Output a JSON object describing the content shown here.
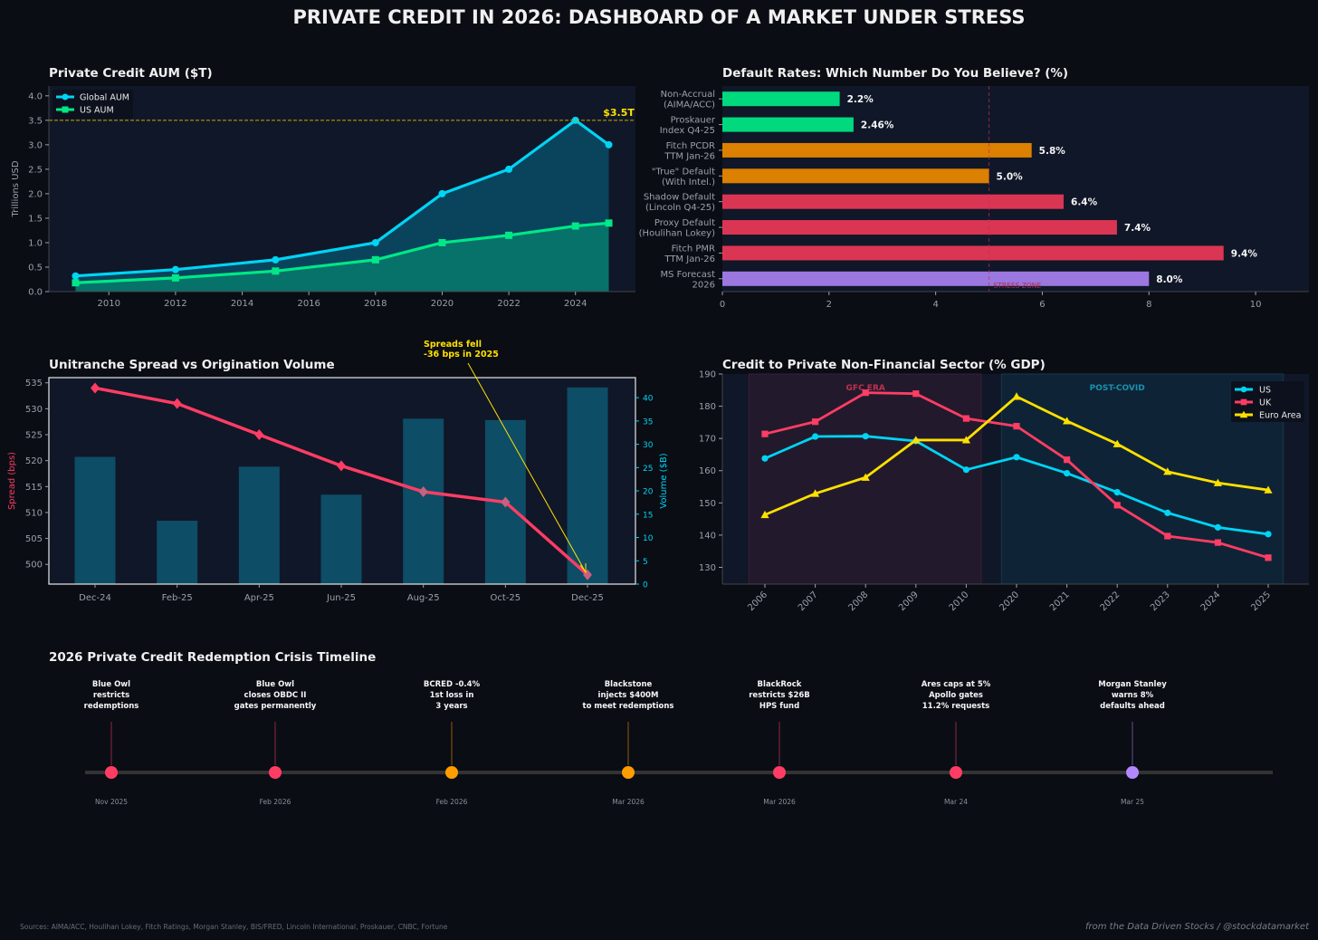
{
  "title": "PRIVATE CREDIT IN 2026: DASHBOARD OF A MARKET UNDER STRESS",
  "colors": {
    "bg": "#0a0d14",
    "panel": "#101728",
    "cyan": "#00d4f5",
    "green": "#00e887",
    "orange": "#e08a00",
    "red": "#e03556",
    "purple": "#9b77e0",
    "yellow": "#ffe000",
    "pink": "#ff3d64"
  },
  "chart_data": [
    {
      "type": "line",
      "title": "Private Credit AUM ($T)",
      "ylabel": "Trillions USD",
      "xlabel": "",
      "xlim": [
        2008.2,
        2025.8
      ],
      "ylim": [
        0,
        4.2
      ],
      "xticks": [
        2010,
        2012,
        2014,
        2016,
        2018,
        2020,
        2022,
        2024
      ],
      "yticks": [
        "0.0",
        "0.5",
        "1.0",
        "1.5",
        "2.0",
        "2.5",
        "3.0",
        "3.5",
        "4.0"
      ],
      "x": [
        2009,
        2012,
        2015,
        2018,
        2020,
        2022,
        2024,
        2025
      ],
      "series": [
        {
          "name": "Global AUM",
          "values": [
            0.32,
            0.45,
            0.65,
            1.0,
            2.0,
            2.5,
            3.5,
            3.0
          ]
        },
        {
          "name": "US AUM",
          "values": [
            0.18,
            0.28,
            0.42,
            0.65,
            1.0,
            1.15,
            1.34,
            1.4
          ]
        }
      ],
      "reference_line": {
        "value": 3.5,
        "label": "$3.5T"
      },
      "legend": "top-left"
    },
    {
      "type": "bar",
      "orientation": "horizontal",
      "title": "Default Rates: Which Number Do You Believe? (%)",
      "categories": [
        "Non-Accrual\n(AIMA/ACC)",
        "Proskauer\nIndex Q4-25",
        "Fitch PCDR\nTTM Jan-26",
        "\"True\" Default\n(With Intel.)",
        "Shadow Default\n(Lincoln Q4-25)",
        "Proxy Default\n(Houlihan Lokey)",
        "Fitch PMR\nTTM Jan-26",
        "MS Forecast\n2026"
      ],
      "values": [
        2.2,
        2.46,
        5.8,
        5.0,
        6.4,
        7.4,
        9.4,
        8.0
      ],
      "labels": [
        "2.2%",
        "2.46%",
        "5.8%",
        "5.0%",
        "6.4%",
        "7.4%",
        "9.4%",
        "8.0%"
      ],
      "bar_colors": [
        "#00d97e",
        "#00d97e",
        "#db8000",
        "#db8000",
        "#db3554",
        "#db3554",
        "#db3554",
        "#9b77e0"
      ],
      "xlim": [
        0,
        11
      ],
      "xticks": [
        "0",
        "2",
        "4",
        "6",
        "8",
        "10"
      ],
      "reference_line": {
        "value": 5,
        "label": "STRESS ZONE"
      }
    },
    {
      "type": "bar+line",
      "title": "Unitranche Spread vs Origination Volume",
      "categories": [
        "Dec-24",
        "Feb-25",
        "Apr-25",
        "Jun-25",
        "Aug-25",
        "Oct-25",
        "Dec-25"
      ],
      "series": [
        {
          "name": "Spread (bps)",
          "axis": "left",
          "type": "line",
          "values": [
            534,
            531,
            525,
            519,
            514,
            512,
            498
          ]
        },
        {
          "name": "Volume ($B)",
          "axis": "right",
          "type": "bar",
          "values": [
            27.3,
            13.6,
            25.2,
            19.2,
            35.5,
            35.2,
            42.2
          ]
        }
      ],
      "ylabel": "Spread (bps)",
      "y2label": "Volume ($B)",
      "ylim": [
        496.2,
        536
      ],
      "y2lim": [
        0,
        44.3
      ],
      "yticks": [
        "500",
        "505",
        "510",
        "515",
        "520",
        "525",
        "530",
        "535"
      ],
      "y2ticks": [
        "0",
        "5",
        "10",
        "15",
        "20",
        "25",
        "30",
        "35",
        "40"
      ],
      "annotation": {
        "line1": "Spreads fell",
        "line2": "-36 bps in 2025",
        "target": "Dec-25"
      }
    },
    {
      "type": "line",
      "title": "Credit to Private Non-Financial Sector (% GDP)",
      "categories": [
        "2006",
        "2007",
        "2008",
        "2009",
        "2010",
        "2020",
        "2021",
        "2022",
        "2023",
        "2024",
        "2025"
      ],
      "series": [
        {
          "name": "US",
          "values": [
            163.8,
            170.6,
            170.7,
            169.2,
            160.3,
            164.2,
            159.2,
            153.3,
            146.9,
            142.4,
            140.3
          ]
        },
        {
          "name": "UK",
          "values": [
            171.4,
            175.2,
            184.2,
            183.9,
            176.2,
            173.8,
            163.4,
            149.3,
            139.7,
            137.7,
            133.0
          ]
        },
        {
          "name": "Euro Area",
          "values": [
            146.3,
            152.9,
            157.9,
            169.5,
            169.5,
            183.0,
            175.4,
            168.3,
            159.7,
            156.2,
            154.0
          ]
        }
      ],
      "ylim": [
        124.8,
        190
      ],
      "yticks": [
        "130",
        "140",
        "150",
        "160",
        "170",
        "180",
        "190"
      ],
      "shaded_regions": [
        {
          "label": "GFC ERA",
          "from": "2006",
          "to": "2010"
        },
        {
          "label": "POST-COVID",
          "from": "2020",
          "to": "2025"
        }
      ],
      "legend": "top-right"
    }
  ],
  "timeline": {
    "title": "2026 Private Credit Redemption Crisis Timeline",
    "events": [
      {
        "lines": [
          "Blue Owl",
          "restricts",
          "redemptions"
        ],
        "date": "Nov 2025",
        "color": "#ff3d64"
      },
      {
        "lines": [
          "Blue Owl",
          "closes OBDC II",
          "gates permanently"
        ],
        "date": "Feb 2026",
        "color": "#ff3d64"
      },
      {
        "lines": [
          "BCRED -0.4%",
          "1st loss in",
          "3 years"
        ],
        "date": "Feb 2026",
        "color": "#ff9d00"
      },
      {
        "lines": [
          "Blackstone",
          "injects $400M",
          "to meet redemptions"
        ],
        "date": "Mar 2026",
        "color": "#ff9d00"
      },
      {
        "lines": [
          "BlackRock",
          "restricts $26B",
          "HPS fund"
        ],
        "date": "Mar 2026",
        "color": "#ff3d64"
      },
      {
        "lines": [
          "Ares caps at 5%",
          "Apollo gates",
          "11.2% requests"
        ],
        "date": "Mar 24",
        "color": "#ff3d64"
      },
      {
        "lines": [
          "Morgan Stanley",
          "warns 8%",
          "defaults ahead"
        ],
        "date": "Mar 25",
        "color": "#b388ff"
      }
    ]
  },
  "footer": {
    "sources": "Sources: AIMA/ACC, Houlihan Lokey, Fitch Ratings, Morgan Stanley, BIS/FRED, Lincoln International, Proskauer, CNBC, Fortune",
    "credit": "from the Data Driven Stocks / @stockdatamarket"
  }
}
